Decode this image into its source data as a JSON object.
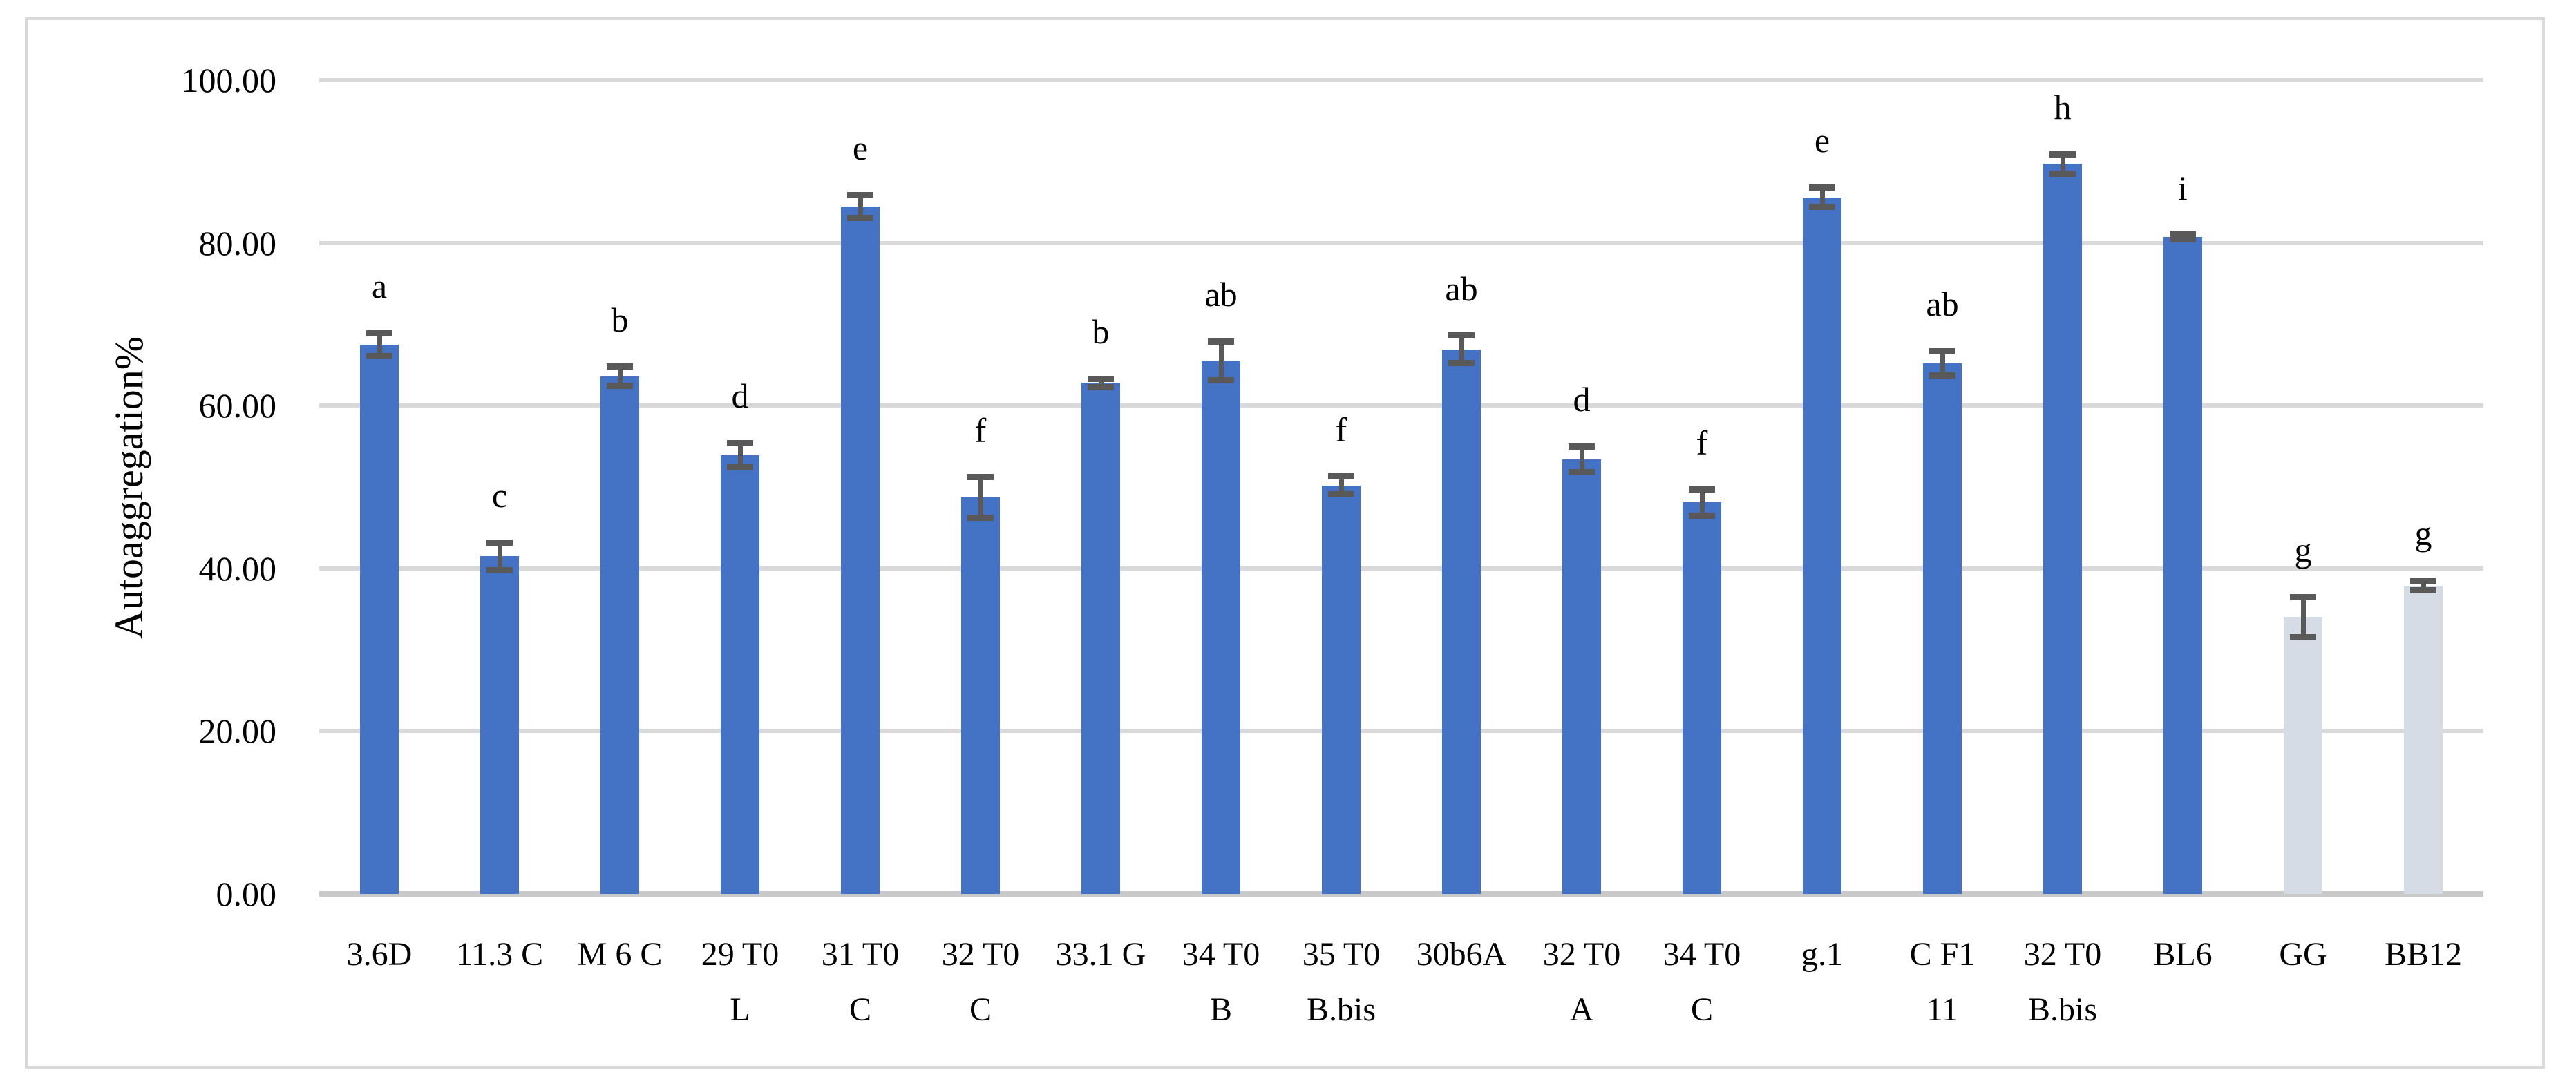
{
  "figure": {
    "background_color": "#ffffff",
    "border_color": "#D9D9D9"
  },
  "chart_data": {
    "type": "bar",
    "title": "",
    "xlabel": "",
    "ylabel": "Autoaggregation%",
    "ylim": [
      0,
      100
    ],
    "yticks": [
      0,
      20,
      40,
      60,
      80,
      100
    ],
    "ytick_labels": [
      "0.00",
      "20.00",
      "40.00",
      "60.00",
      "80.00",
      "100.00"
    ],
    "grid": true,
    "legend_position": "none",
    "categories": [
      "3.6D",
      "11.3 C",
      "M 6 C",
      "29 T0 L",
      "31 T0 C",
      "32 T0 C",
      "33.1 G",
      "34 T0 B",
      "35 T0 B.bis",
      "30b6A",
      "32 T0 A",
      "34 T0 C",
      "g.1",
      "C F1 11",
      "32 T0 B.bis",
      "BL6",
      "GG",
      "BB12"
    ],
    "category_label_lines": [
      [
        "3.6D"
      ],
      [
        "11.3 C"
      ],
      [
        "M 6 C"
      ],
      [
        "29 T0",
        "L"
      ],
      [
        "31 T0",
        "C"
      ],
      [
        "32 T0",
        "C"
      ],
      [
        "33.1 G"
      ],
      [
        "34 T0",
        "B"
      ],
      [
        "35 T0",
        "B.bis"
      ],
      [
        "30b6A"
      ],
      [
        "32 T0",
        "A"
      ],
      [
        "34 T0",
        "C"
      ],
      [
        "g.1"
      ],
      [
        "C F1",
        "11"
      ],
      [
        "32 T0",
        "B.bis"
      ],
      [
        "BL6"
      ],
      [
        "GG"
      ],
      [
        "BB12"
      ]
    ],
    "values": [
      67.5,
      41.5,
      63.6,
      53.9,
      84.5,
      48.7,
      62.8,
      65.5,
      50.2,
      66.9,
      53.4,
      48.1,
      85.6,
      65.2,
      89.7,
      80.7,
      34.0,
      37.9
    ],
    "errors": [
      1.4,
      1.7,
      1.2,
      1.5,
      1.4,
      2.5,
      0.5,
      2.4,
      1.1,
      1.7,
      1.6,
      1.6,
      1.2,
      1.5,
      1.2,
      0.3,
      2.5,
      0.6
    ],
    "sig_letters": [
      "a",
      "c",
      "b",
      "d",
      "e",
      "f",
      "b",
      "ab",
      "f",
      "ab",
      "d",
      "f",
      "e",
      "ab",
      "h",
      "i",
      "g",
      "g"
    ],
    "bar_fill_default": "#4472C4",
    "bar_fill_reference": "#D6DCE5",
    "reference_categories": [
      "GG",
      "BB12"
    ],
    "error_bar_color": "#595959",
    "gridline_color": "#D9D9D9",
    "axis_line_color": "#C9C9C9"
  }
}
